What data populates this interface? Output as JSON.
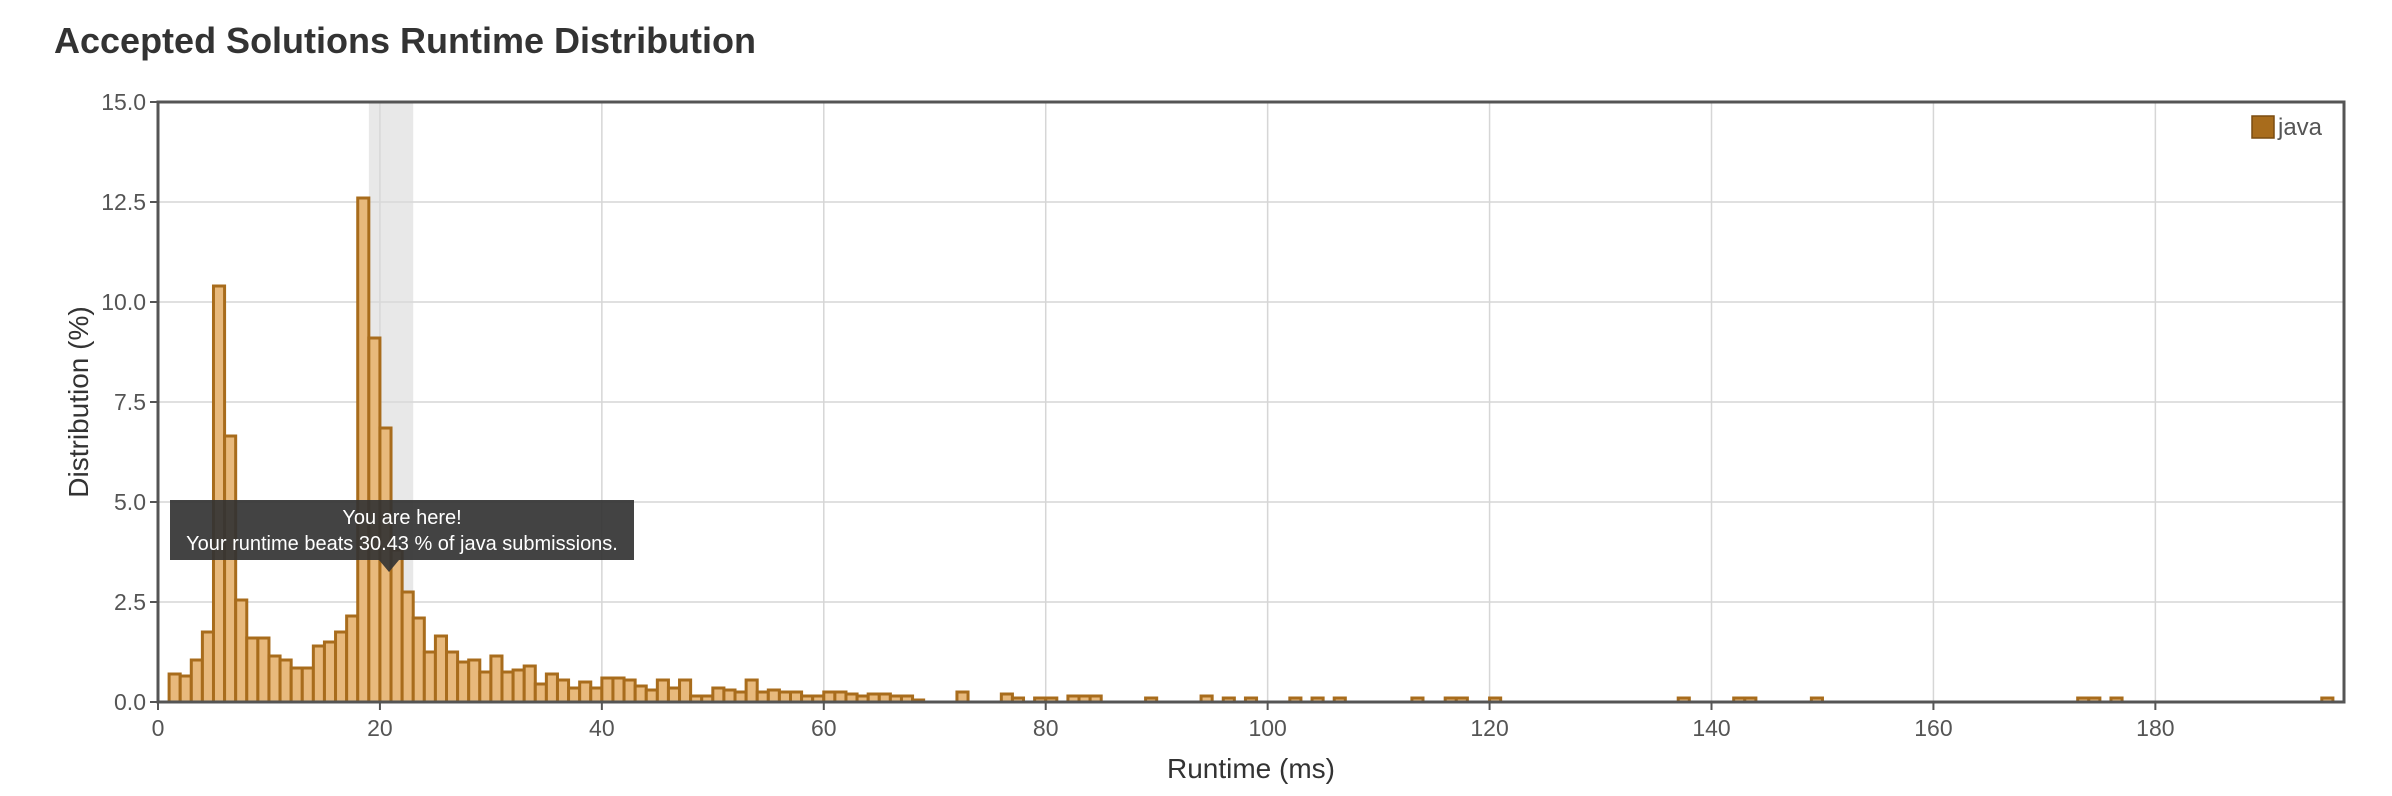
{
  "page": {
    "title": "Accepted Solutions Runtime Distribution"
  },
  "chart_data": {
    "type": "bar",
    "title": "Accepted Solutions Runtime Distribution",
    "xlabel": "Runtime (ms)",
    "ylabel": "Distribution (%)",
    "xlim": [
      0,
      197
    ],
    "ylim": [
      0,
      15
    ],
    "xticks": [
      "0",
      "20",
      "40",
      "60",
      "80",
      "100",
      "120",
      "140",
      "160",
      "180"
    ],
    "yticks": [
      "0.0",
      "2.5",
      "5.0",
      "7.5",
      "10.0",
      "12.5",
      "15.0"
    ],
    "grid": true,
    "legend_position": "top-right",
    "bar_width_ms": 1,
    "colors": {
      "bar_fill": "#e8b97c",
      "bar_stroke": "#a86c1c",
      "legend_swatch": "#a86c1c",
      "highlight_band": "#d9d9d9",
      "tooltip_bg": "#333333"
    },
    "series": [
      {
        "name": "java",
        "x": [
          1,
          2,
          3,
          4,
          5,
          6,
          7,
          8,
          9,
          10,
          11,
          12,
          13,
          14,
          15,
          16,
          17,
          18,
          19,
          20,
          21,
          22,
          23,
          24,
          25,
          26,
          27,
          28,
          29,
          30,
          31,
          32,
          33,
          34,
          35,
          36,
          37,
          38,
          39,
          40,
          41,
          42,
          43,
          44,
          45,
          46,
          47,
          48,
          49,
          50,
          51,
          52,
          53,
          54,
          55,
          56,
          57,
          58,
          59,
          60,
          61,
          62,
          63,
          64,
          65,
          66,
          67,
          68,
          72,
          76,
          77,
          79,
          80,
          82,
          83,
          84,
          89,
          94,
          96,
          98,
          102,
          104,
          106,
          113,
          116,
          117,
          120,
          137,
          142,
          143,
          149,
          173,
          174,
          176,
          195
        ],
        "values": [
          0.7,
          0.65,
          1.05,
          1.75,
          10.4,
          6.65,
          2.55,
          1.6,
          1.6,
          1.15,
          1.05,
          0.85,
          0.85,
          1.4,
          1.5,
          1.75,
          2.15,
          12.6,
          9.1,
          6.85,
          3.8,
          2.75,
          2.1,
          1.25,
          1.65,
          1.25,
          1.0,
          1.05,
          0.75,
          1.15,
          0.75,
          0.8,
          0.9,
          0.45,
          0.7,
          0.55,
          0.35,
          0.5,
          0.35,
          0.6,
          0.6,
          0.55,
          0.4,
          0.3,
          0.55,
          0.35,
          0.55,
          0.15,
          0.15,
          0.35,
          0.3,
          0.25,
          0.55,
          0.25,
          0.3,
          0.25,
          0.25,
          0.15,
          0.15,
          0.25,
          0.25,
          0.2,
          0.15,
          0.2,
          0.2,
          0.15,
          0.15,
          0.05,
          0.25,
          0.2,
          0.1,
          0.1,
          0.1,
          0.15,
          0.15,
          0.15,
          0.1,
          0.15,
          0.1,
          0.1,
          0.1,
          0.1,
          0.1,
          0.1,
          0.1,
          0.1,
          0.1,
          0.1,
          0.1,
          0.1,
          0.1,
          0.1,
          0.1,
          0.1,
          0.1
        ]
      }
    ],
    "highlight_x_range": [
      19,
      23
    ],
    "tooltip": {
      "line1": "You are here!",
      "line2_prefix": "Your runtime beats ",
      "line2_value": "30.43",
      "line2_suffix": " % of java submissions."
    }
  }
}
